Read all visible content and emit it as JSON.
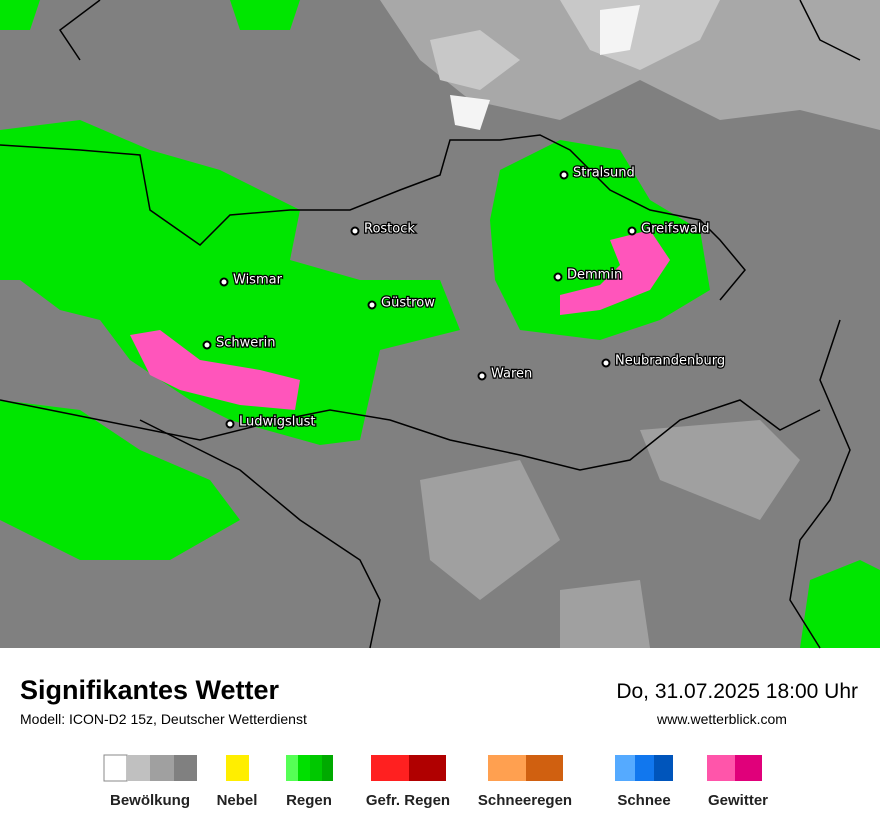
{
  "map": {
    "cities": [
      "Stralsund",
      "Rostock",
      "Greifswald",
      "Wismar",
      "Demmin",
      "Güstrow",
      "Schwerin",
      "Waren",
      "Neubrandenburg",
      "Ludwigslust"
    ]
  },
  "footer": {
    "title": "Signifikantes Wetter",
    "subtitle": "Modell: ICON-D2 15z, Deutscher Wetterdienst",
    "datetime": "Do, 31.07.2025 18:00 Uhr",
    "url": "www.wetterblick.com"
  },
  "legend": [
    "Bewölkung",
    "Nebel",
    "Regen",
    "Gefr. Regen",
    "Schneeregen",
    "Schnee",
    "Gewitter"
  ]
}
